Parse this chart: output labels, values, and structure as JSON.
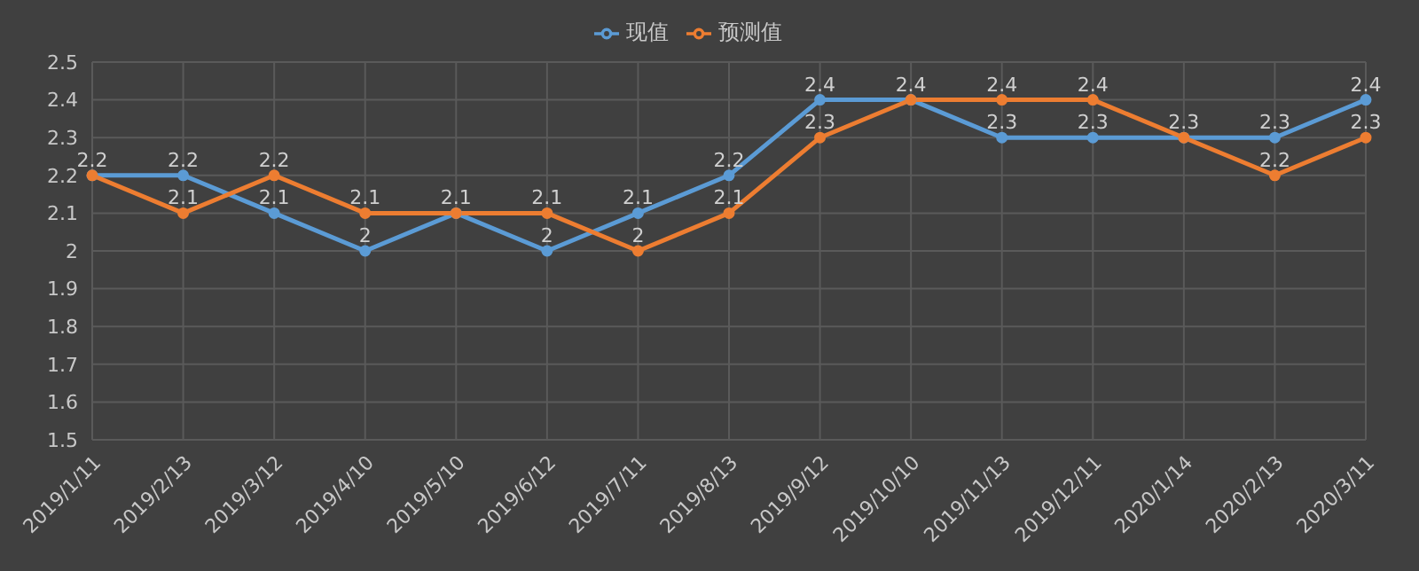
{
  "chart_data": {
    "type": "line",
    "categories": [
      "2019/1/11",
      "2019/2/13",
      "2019/3/12",
      "2019/4/10",
      "2019/5/10",
      "2019/6/12",
      "2019/7/11",
      "2019/8/13",
      "2019/9/12",
      "2019/10/10",
      "2019/11/13",
      "2019/12/11",
      "2020/1/14",
      "2020/2/13",
      "2020/3/11"
    ],
    "series": [
      {
        "name": "现值",
        "color": "#5b9bd5",
        "values": [
          2.2,
          2.2,
          2.1,
          2.0,
          2.1,
          2.0,
          2.1,
          2.2,
          2.4,
          2.4,
          2.3,
          2.3,
          2.3,
          2.3,
          2.4
        ]
      },
      {
        "name": "预测值",
        "color": "#ed7d31",
        "values": [
          2.2,
          2.1,
          2.2,
          2.1,
          2.1,
          2.1,
          2.0,
          2.1,
          2.3,
          2.4,
          2.4,
          2.4,
          2.3,
          2.2,
          2.3
        ],
        "value_labels": [
          null,
          "2.1",
          "2.2",
          "2.1",
          null,
          "2.1",
          "2",
          "2.1",
          "2.3",
          null,
          "2.4",
          "2.4",
          null,
          "2.2",
          "2.3"
        ]
      }
    ],
    "ylim": [
      1.5,
      2.5
    ],
    "yticks": [
      1.5,
      1.6,
      1.7,
      1.8,
      1.9,
      2,
      2.1,
      2.2,
      2.3,
      2.4,
      2.5
    ],
    "grid": true,
    "legend": "top",
    "marker": "circle",
    "line_style": "solid",
    "data_labels": true
  }
}
